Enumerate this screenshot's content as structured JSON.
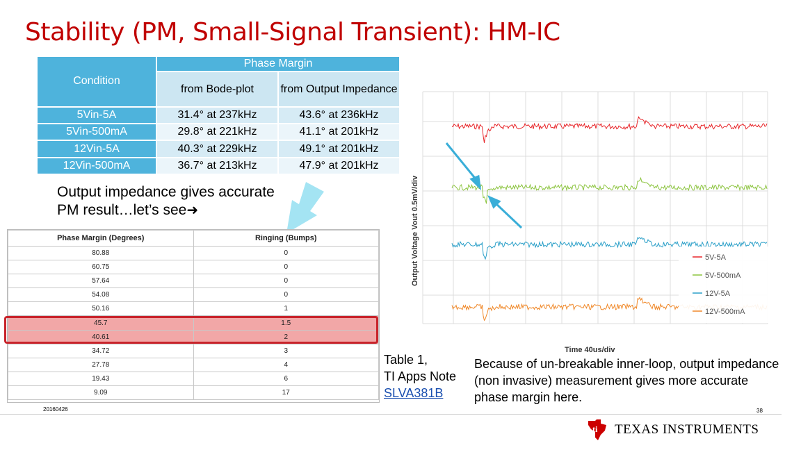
{
  "title": "Stability (PM, Small-Signal Transient): HM-IC",
  "pm_table": {
    "condition_header": "Condition",
    "phase_margin_header": "Phase Margin",
    "bode_header": "from Bode-plot",
    "impedance_header": "from Output Impedance",
    "rows": [
      {
        "condition": "5Vin-5A",
        "bode": "31.4° at 237kHz",
        "impedance": "43.6° at 236kHz"
      },
      {
        "condition": "5Vin-500mA",
        "bode": "29.8° at 221kHz",
        "impedance": "41.1° at 201kHz"
      },
      {
        "condition": "12Vin-5A",
        "bode": "40.3° at 229kHz",
        "impedance": "49.1° at 201kHz"
      },
      {
        "condition": "12Vin-500mA",
        "bode": "36.7° at 213kHz",
        "impedance": "47.9° at 201kHz"
      }
    ]
  },
  "note": {
    "line1": "Output impedance gives accurate",
    "line2": "PM result…let’s see"
  },
  "ringing_table": {
    "headers": [
      "Phase Margin (Degrees)",
      "Ringing (Bumps)"
    ],
    "rows": [
      [
        "80.88",
        "0"
      ],
      [
        "60.75",
        "0"
      ],
      [
        "57.64",
        "0"
      ],
      [
        "54.08",
        "0"
      ],
      [
        "50.16",
        "1"
      ],
      [
        "45.7",
        "1.5"
      ],
      [
        "40.61",
        "2"
      ],
      [
        "34.72",
        "3"
      ],
      [
        "27.78",
        "4"
      ],
      [
        "19.43",
        "6"
      ],
      [
        "9.09",
        "17"
      ]
    ],
    "highlight_rows": [
      5,
      6
    ]
  },
  "date": "20160426",
  "scope": {
    "y_label": "Output Voltage  Vout  0.5mV/div",
    "x_label": "Time  40us/div",
    "legend": [
      {
        "name": "5V-5A",
        "color": "#e8262a"
      },
      {
        "name": "5V-500mA",
        "color": "#8cc43f"
      },
      {
        "name": "12V-5A",
        "color": "#2a9fc8"
      },
      {
        "name": "12V-500mA",
        "color": "#f0892a"
      }
    ]
  },
  "table_ref": {
    "line1": "Table 1,",
    "line2": "TI Apps Note",
    "link": "SLVA381B"
  },
  "explanation": "Because of un-breakable inner-loop, output impedance (non invasive) measurement gives more accurate phase margin here.",
  "page_number": "38",
  "logo_text": "TEXAS INSTRUMENTS",
  "colors": {
    "title": "#c00000",
    "table_header": "#4eb3dc",
    "highlight": "#c8242b"
  }
}
